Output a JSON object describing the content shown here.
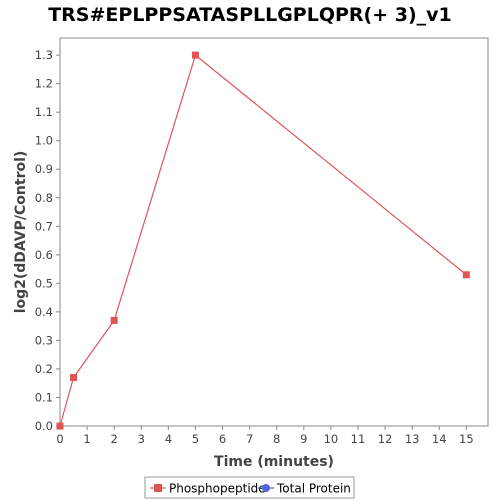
{
  "chart_data": {
    "type": "line",
    "title": "TRS#EPLPPSATASPLLGPLQPR(+ 3)_v1",
    "xlabel": "Time (minutes)",
    "ylabel": "log2(dDAVP/Control)",
    "xlim": [
      0,
      15.8
    ],
    "ylim": [
      0,
      1.36
    ],
    "x_ticks": [
      0,
      1,
      2,
      3,
      4,
      5,
      6,
      7,
      8,
      9,
      10,
      11,
      12,
      13,
      14,
      15
    ],
    "y_ticks": [
      0.0,
      0.1,
      0.2,
      0.3,
      0.4,
      0.5,
      0.6,
      0.7,
      0.8,
      0.9,
      1.0,
      1.1,
      1.2,
      1.3
    ],
    "y_tick_labels": [
      "0.0",
      "0.1",
      "0.2",
      "0.3",
      "0.4",
      "0.5",
      "0.6",
      "0.7",
      "0.8",
      "0.9",
      "1.0",
      "1.1",
      "1.2",
      "1.3"
    ],
    "grid": false,
    "legend_position": "bottom",
    "series": [
      {
        "name": "Phosphopeptide",
        "color": "#e05555",
        "marker": "square",
        "x": [
          0,
          0.5,
          2,
          5,
          15
        ],
        "y": [
          0.0,
          0.17,
          0.37,
          1.3,
          0.53
        ]
      },
      {
        "name": "Total Protein",
        "color": "#5566e0",
        "marker": "circle",
        "x": [],
        "y": []
      }
    ]
  }
}
